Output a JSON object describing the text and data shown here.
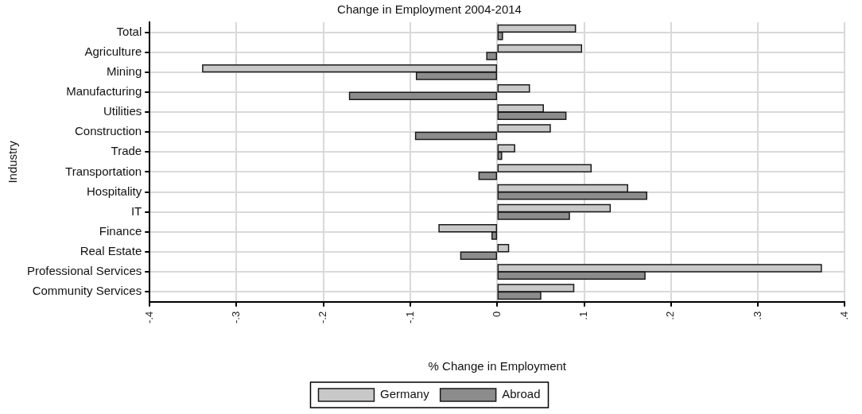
{
  "chart_data": {
    "type": "bar",
    "orientation": "horizontal",
    "title": "Change in Employment 2004-2014",
    "xlabel": "% Change in Employment",
    "ylabel": "Industry",
    "categories": [
      "Total",
      "Agriculture",
      "Mining",
      "Manufacturing",
      "Utilities",
      "Construction",
      "Trade",
      "Transportation",
      "Hospitality",
      "IT",
      "Finance",
      "Real Estate",
      "Professional Services",
      "Community Services"
    ],
    "series": [
      {
        "name": "Germany",
        "color": "#c8c8c8",
        "values": [
          0.09,
          0.097,
          -0.339,
          0.037,
          0.053,
          0.061,
          0.02,
          0.108,
          0.15,
          0.13,
          -0.067,
          0.013,
          0.373,
          0.088
        ]
      },
      {
        "name": "Abroad",
        "color": "#8c8c8c",
        "values": [
          0.006,
          -0.012,
          -0.093,
          -0.17,
          0.079,
          -0.094,
          0.005,
          -0.021,
          0.172,
          0.083,
          -0.006,
          -0.042,
          0.17,
          0.05
        ]
      }
    ],
    "xlim": [
      -0.4,
      0.4
    ],
    "xticks": [
      {
        "value": -0.4,
        "label": "-.4"
      },
      {
        "value": -0.3,
        "label": "-.3"
      },
      {
        "value": -0.2,
        "label": "-.2"
      },
      {
        "value": -0.1,
        "label": "-.1"
      },
      0,
      {
        "value": 0.1,
        "label": ".1"
      },
      {
        "value": 0.2,
        "label": ".2"
      },
      {
        "value": 0.3,
        "label": ".3"
      },
      {
        "value": 0.4,
        "label": ".4"
      }
    ],
    "grid": true,
    "legend": "bottom"
  }
}
